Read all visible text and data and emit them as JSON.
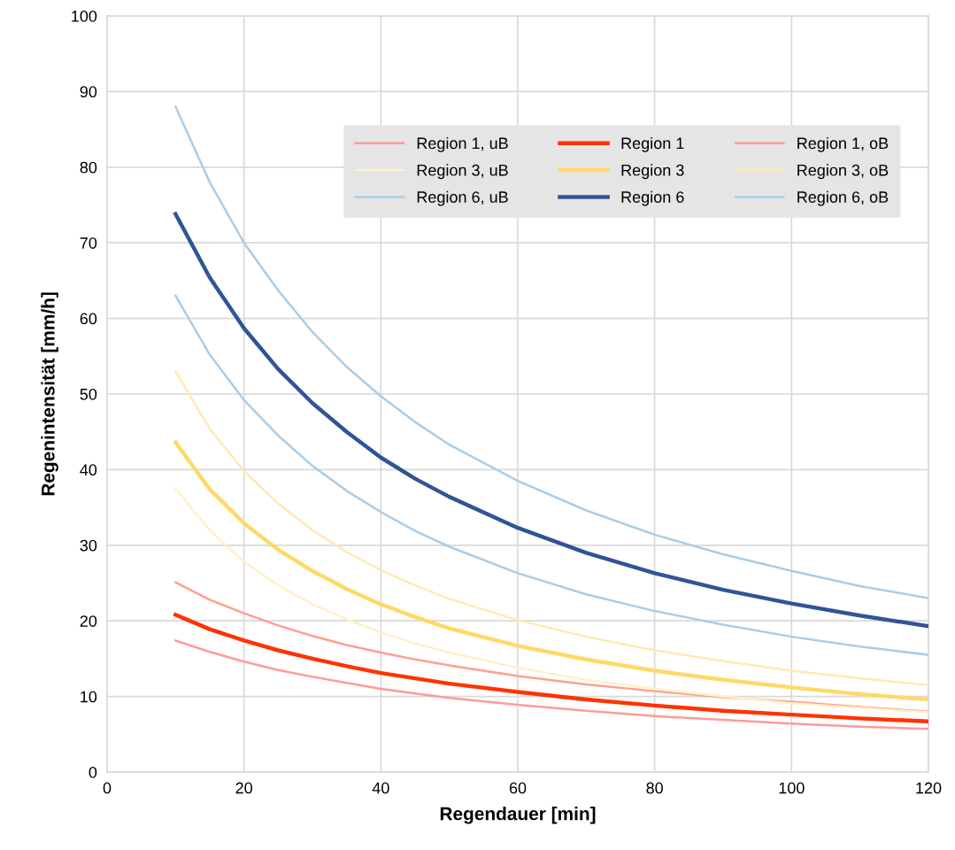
{
  "chart_data": {
    "type": "line",
    "xlabel": "Regendauer [min]",
    "ylabel": "Regenintensität [mm/h]",
    "x": [
      10,
      15,
      20,
      25,
      30,
      35,
      40,
      45,
      50,
      60,
      70,
      80,
      90,
      100,
      110,
      120
    ],
    "xlim": [
      0,
      120
    ],
    "xticks": [
      0,
      20,
      40,
      60,
      80,
      100,
      120
    ],
    "ylim": [
      0,
      100
    ],
    "yticks": [
      0,
      10,
      20,
      30,
      40,
      50,
      60,
      70,
      80,
      90,
      100
    ],
    "grid": true,
    "legend": "top right",
    "marker": "none",
    "series": [
      {
        "name": "Region 1, uB",
        "color": "#ff9a9a",
        "values": [
          17.4,
          15.9,
          14.6,
          13.5,
          12.6,
          11.8,
          11.0,
          10.4,
          9.8,
          8.9,
          8.1,
          7.4,
          6.9,
          6.4,
          6.0,
          5.7
        ]
      },
      {
        "name": "Region 1",
        "color": "#ff3300",
        "values": [
          20.8,
          18.9,
          17.4,
          16.1,
          15.0,
          14.0,
          13.1,
          12.4,
          11.7,
          10.6,
          9.6,
          8.8,
          8.1,
          7.6,
          7.1,
          6.7
        ]
      },
      {
        "name": "Region 1, oB",
        "color": "#ffa08f",
        "values": [
          25.1,
          22.8,
          21.0,
          19.4,
          18.0,
          16.8,
          15.8,
          14.9,
          14.1,
          12.7,
          11.6,
          10.7,
          9.9,
          9.3,
          8.6,
          8.0
        ]
      },
      {
        "name": "Region 3, uB",
        "color": "#fff0c8",
        "values": [
          37.5,
          32.0,
          27.8,
          24.7,
          22.2,
          20.2,
          18.5,
          17.0,
          15.8,
          13.8,
          12.2,
          11.0,
          10.0,
          9.1,
          8.5,
          7.9
        ]
      },
      {
        "name": "Region 3",
        "color": "#ffd966",
        "values": [
          43.6,
          37.4,
          32.9,
          29.4,
          26.6,
          24.2,
          22.2,
          20.5,
          19.0,
          16.7,
          14.9,
          13.4,
          12.2,
          11.2,
          10.3,
          9.6
        ]
      },
      {
        "name": "Region 3, oB",
        "color": "#ffeab0",
        "values": [
          53.0,
          45.4,
          39.8,
          35.5,
          32.0,
          29.1,
          26.7,
          24.7,
          22.9,
          20.1,
          17.9,
          16.1,
          14.7,
          13.4,
          12.4,
          11.5
        ]
      },
      {
        "name": "Region 6, uB",
        "color": "#a9cde8",
        "values": [
          63.0,
          55.2,
          49.2,
          44.5,
          40.5,
          37.2,
          34.4,
          31.9,
          29.8,
          26.3,
          23.5,
          21.3,
          19.5,
          17.9,
          16.6,
          15.5
        ]
      },
      {
        "name": "Region 6",
        "color": "#2f5597",
        "values": [
          73.8,
          65.4,
          58.7,
          53.3,
          48.8,
          45.0,
          41.6,
          38.8,
          36.4,
          32.3,
          29.0,
          26.3,
          24.1,
          22.3,
          20.7,
          19.3
        ]
      },
      {
        "name": "Region 6, oB",
        "color": "#a9cde8",
        "values": [
          88.0,
          78.0,
          70.0,
          63.7,
          58.2,
          53.6,
          49.7,
          46.3,
          43.3,
          38.5,
          34.6,
          31.4,
          28.8,
          26.6,
          24.6,
          23.0
        ]
      }
    ]
  }
}
